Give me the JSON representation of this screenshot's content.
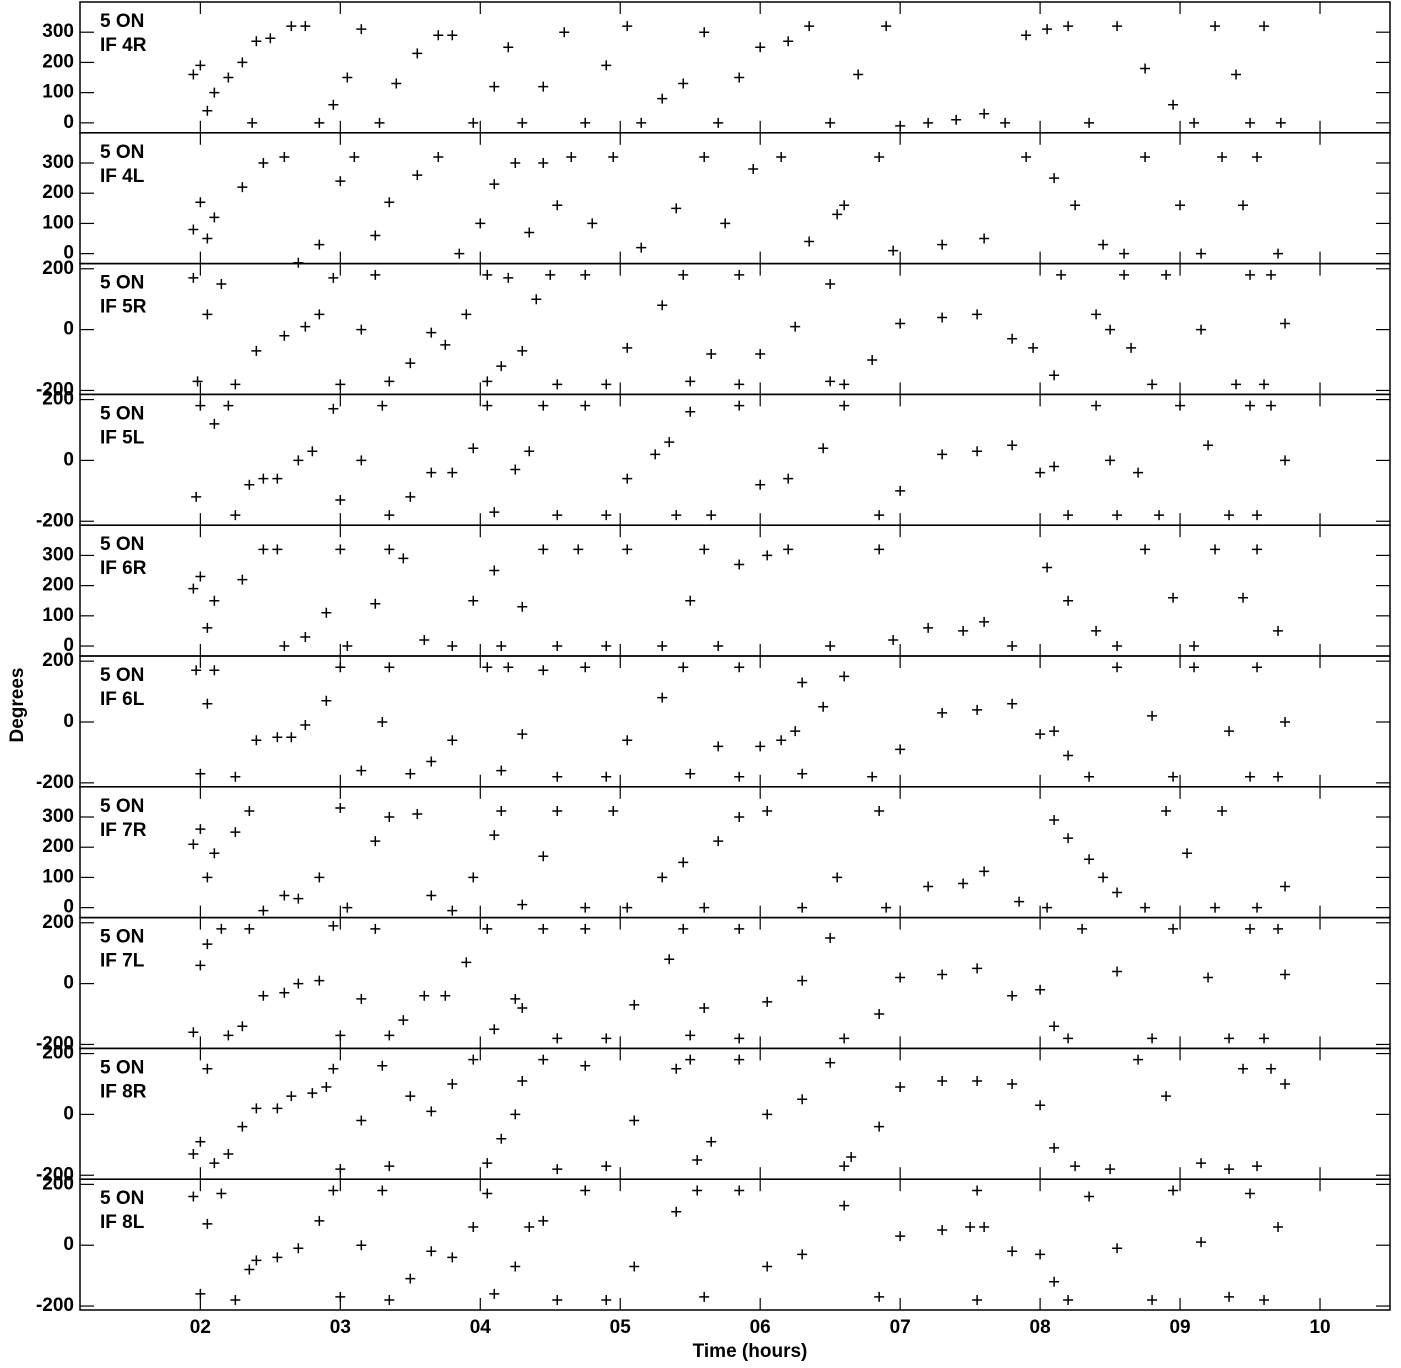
{
  "ylabel": "Degrees",
  "xlabel": "Time (hours)",
  "xlim": [
    1.14,
    10.5
  ],
  "xticks": [
    {
      "value": 2,
      "label": "02"
    },
    {
      "value": 3,
      "label": "03"
    },
    {
      "value": 4,
      "label": "04"
    },
    {
      "value": 5,
      "label": "05"
    },
    {
      "value": 6,
      "label": "06"
    },
    {
      "value": 7,
      "label": "07"
    },
    {
      "value": 8,
      "label": "08"
    },
    {
      "value": 9,
      "label": "09"
    },
    {
      "value": 10,
      "label": "10"
    }
  ],
  "chart_data": [
    {
      "type": "scatter",
      "source": "5 ON",
      "channel": "IF 4R",
      "ylim": [
        -33,
        400
      ],
      "yticks": [
        0,
        100,
        200,
        300
      ],
      "x": [
        1.95,
        2.0,
        2.05,
        2.1,
        2.2,
        2.3,
        2.37,
        2.4,
        2.5,
        2.65,
        2.75,
        2.85,
        2.95,
        3.05,
        3.15,
        3.28,
        3.4,
        3.55,
        3.7,
        3.8,
        3.95,
        4.1,
        4.2,
        4.3,
        4.45,
        4.6,
        4.75,
        4.9,
        5.05,
        5.15,
        5.3,
        5.45,
        5.6,
        5.7,
        5.85,
        6.0,
        6.2,
        6.35,
        6.5,
        6.7,
        6.9,
        7.0,
        7.2,
        7.4,
        7.6,
        7.75,
        7.9,
        8.05,
        8.2,
        8.35,
        8.55,
        8.75,
        8.95,
        9.1,
        9.25,
        9.4,
        9.5,
        9.6,
        9.72
      ],
      "values": [
        160,
        190,
        40,
        100,
        150,
        200,
        0,
        270,
        280,
        320,
        320,
        0,
        60,
        150,
        310,
        0,
        130,
        230,
        290,
        290,
        0,
        120,
        250,
        0,
        120,
        300,
        0,
        190,
        320,
        0,
        80,
        130,
        300,
        0,
        150,
        250,
        270,
        320,
        0,
        160,
        320,
        -10,
        0,
        10,
        30,
        0,
        290,
        310,
        320,
        0,
        320,
        180,
        60,
        0,
        320,
        160,
        0,
        320,
        0
      ]
    },
    {
      "type": "scatter",
      "source": "5 ON",
      "channel": "IF 4L",
      "ylim": [
        -33,
        400
      ],
      "yticks": [
        0,
        100,
        200,
        300
      ],
      "x": [
        1.95,
        2.0,
        2.05,
        2.1,
        2.3,
        2.45,
        2.6,
        2.7,
        2.85,
        3.0,
        3.1,
        3.25,
        3.35,
        3.55,
        3.7,
        3.85,
        4.0,
        4.1,
        4.25,
        4.35,
        4.45,
        4.55,
        4.65,
        4.8,
        4.95,
        5.15,
        5.4,
        5.6,
        5.75,
        5.95,
        6.15,
        6.35,
        6.55,
        6.6,
        6.85,
        6.95,
        7.3,
        7.6,
        7.9,
        8.1,
        8.25,
        8.45,
        8.6,
        8.75,
        9.0,
        9.15,
        9.3,
        9.45,
        9.55,
        9.7
      ],
      "values": [
        80,
        170,
        50,
        120,
        220,
        300,
        320,
        -30,
        30,
        240,
        320,
        60,
        170,
        260,
        320,
        0,
        100,
        230,
        300,
        70,
        300,
        160,
        320,
        100,
        320,
        20,
        150,
        320,
        100,
        280,
        320,
        40,
        130,
        160,
        320,
        10,
        30,
        50,
        320,
        250,
        160,
        30,
        0,
        320,
        160,
        0,
        320,
        160,
        320,
        0
      ]
    },
    {
      "type": "scatter",
      "source": "5 ON",
      "channel": "IF 5R",
      "ylim": [
        -213,
        217
      ],
      "yticks": [
        -200,
        0,
        200
      ],
      "x": [
        1.95,
        1.98,
        2.05,
        2.15,
        2.25,
        2.4,
        2.6,
        2.75,
        2.85,
        2.95,
        3.0,
        3.15,
        3.25,
        3.35,
        3.5,
        3.65,
        3.75,
        3.9,
        4.05,
        4.05,
        4.15,
        4.2,
        4.3,
        4.4,
        4.5,
        4.55,
        4.75,
        4.9,
        5.05,
        5.3,
        5.45,
        5.5,
        5.65,
        5.85,
        5.85,
        6.0,
        6.25,
        6.5,
        6.5,
        6.6,
        6.8,
        7.0,
        7.3,
        7.55,
        7.8,
        7.95,
        8.1,
        8.15,
        8.4,
        8.5,
        8.6,
        8.65,
        8.8,
        8.9,
        9.15,
        9.4,
        9.5,
        9.6,
        9.65,
        9.75
      ],
      "values": [
        170,
        -170,
        50,
        150,
        -180,
        -70,
        -20,
        10,
        50,
        170,
        -180,
        0,
        180,
        -170,
        -110,
        -10,
        -50,
        50,
        180,
        -170,
        -120,
        170,
        -70,
        100,
        180,
        -180,
        180,
        -180,
        -60,
        80,
        180,
        -170,
        -80,
        180,
        -180,
        -80,
        10,
        150,
        -170,
        -180,
        -100,
        20,
        40,
        50,
        -30,
        -60,
        -150,
        180,
        50,
        0,
        180,
        -60,
        -180,
        180,
        0,
        -180,
        180,
        -180,
        180,
        20
      ]
    },
    {
      "type": "scatter",
      "source": "5 ON",
      "channel": "IF 5L",
      "ylim": [
        -213,
        217
      ],
      "yticks": [
        -200,
        0,
        200
      ],
      "x": [
        1.97,
        2.0,
        2.1,
        2.2,
        2.25,
        2.35,
        2.45,
        2.55,
        2.7,
        2.8,
        2.95,
        3.0,
        3.15,
        3.3,
        3.35,
        3.5,
        3.65,
        3.8,
        3.95,
        4.05,
        4.1,
        4.25,
        4.35,
        4.45,
        4.55,
        4.75,
        4.9,
        5.05,
        5.25,
        5.35,
        5.4,
        5.5,
        5.65,
        5.85,
        6.0,
        6.2,
        6.45,
        6.6,
        6.85,
        7.0,
        7.3,
        7.55,
        7.8,
        8.0,
        8.1,
        8.2,
        8.4,
        8.5,
        8.55,
        8.7,
        8.85,
        9.0,
        9.2,
        9.35,
        9.5,
        9.55,
        9.65,
        9.75
      ],
      "values": [
        -120,
        180,
        120,
        180,
        -180,
        -80,
        -60,
        -60,
        0,
        30,
        170,
        -130,
        0,
        180,
        -180,
        -120,
        -40,
        -40,
        40,
        180,
        -170,
        -30,
        30,
        180,
        -180,
        180,
        -180,
        -60,
        20,
        60,
        -180,
        160,
        -180,
        180,
        -80,
        -60,
        40,
        180,
        -180,
        -100,
        20,
        30,
        50,
        -40,
        -20,
        -180,
        180,
        0,
        -180,
        -40,
        -180,
        180,
        50,
        -180,
        180,
        -180,
        180,
        0
      ]
    },
    {
      "type": "scatter",
      "source": "5 ON",
      "channel": "IF 6R",
      "ylim": [
        -33,
        400
      ],
      "yticks": [
        0,
        100,
        200,
        300
      ],
      "x": [
        1.95,
        2.0,
        2.05,
        2.1,
        2.3,
        2.45,
        2.55,
        2.6,
        2.75,
        2.9,
        3.0,
        3.05,
        3.25,
        3.35,
        3.45,
        3.6,
        3.8,
        3.95,
        4.1,
        4.15,
        4.3,
        4.45,
        4.55,
        4.7,
        4.9,
        5.05,
        5.3,
        5.5,
        5.6,
        5.7,
        5.85,
        6.05,
        6.2,
        6.5,
        6.85,
        6.95,
        7.2,
        7.45,
        7.6,
        7.8,
        8.05,
        8.2,
        8.4,
        8.55,
        8.75,
        8.95,
        9.1,
        9.25,
        9.45,
        9.55,
        9.7
      ],
      "values": [
        190,
        230,
        60,
        150,
        220,
        320,
        320,
        0,
        30,
        110,
        320,
        0,
        140,
        320,
        290,
        20,
        0,
        150,
        250,
        0,
        130,
        320,
        0,
        320,
        0,
        320,
        0,
        150,
        320,
        0,
        270,
        300,
        320,
        0,
        320,
        20,
        60,
        50,
        80,
        0,
        260,
        150,
        50,
        0,
        320,
        160,
        0,
        320,
        160,
        320,
        50
      ]
    },
    {
      "type": "scatter",
      "source": "5 ON",
      "channel": "IF 6L",
      "ylim": [
        -213,
        217
      ],
      "yticks": [
        -200,
        0,
        200
      ],
      "x": [
        1.97,
        2.0,
        2.05,
        2.1,
        2.25,
        2.4,
        2.55,
        2.65,
        2.75,
        2.9,
        3.0,
        3.15,
        3.3,
        3.35,
        3.5,
        3.65,
        3.8,
        4.05,
        4.15,
        4.2,
        4.3,
        4.45,
        4.55,
        4.75,
        4.9,
        5.05,
        5.3,
        5.45,
        5.5,
        5.7,
        5.85,
        5.85,
        6.0,
        6.15,
        6.25,
        6.3,
        6.3,
        6.45,
        6.6,
        6.8,
        7.0,
        7.3,
        7.55,
        7.8,
        8.0,
        8.1,
        8.2,
        8.35,
        8.55,
        8.8,
        8.95,
        9.1,
        9.35,
        9.5,
        9.55,
        9.7,
        9.75
      ],
      "values": [
        170,
        -170,
        60,
        170,
        -180,
        -60,
        -50,
        -50,
        -10,
        70,
        180,
        -160,
        0,
        180,
        -170,
        -130,
        -60,
        180,
        -160,
        180,
        -40,
        170,
        -180,
        180,
        -180,
        -60,
        80,
        180,
        -170,
        -80,
        180,
        -180,
        -80,
        -60,
        -30,
        -170,
        130,
        50,
        150,
        -180,
        -90,
        30,
        40,
        60,
        -40,
        -30,
        -110,
        -180,
        180,
        20,
        -180,
        180,
        -30,
        -180,
        180,
        -180,
        0
      ]
    },
    {
      "type": "scatter",
      "source": "5 ON",
      "channel": "IF 7R",
      "ylim": [
        -33,
        400
      ],
      "yticks": [
        0,
        100,
        200,
        300
      ],
      "x": [
        1.95,
        2.0,
        2.05,
        2.1,
        2.25,
        2.35,
        2.45,
        2.6,
        2.7,
        2.85,
        3.0,
        3.05,
        3.25,
        3.35,
        3.55,
        3.65,
        3.8,
        3.95,
        4.1,
        4.15,
        4.3,
        4.45,
        4.55,
        4.75,
        4.95,
        5.05,
        5.3,
        5.45,
        5.6,
        5.7,
        5.85,
        6.05,
        6.3,
        6.55,
        6.85,
        6.9,
        7.2,
        7.45,
        7.6,
        7.85,
        8.05,
        8.1,
        8.2,
        8.35,
        8.45,
        8.55,
        8.75,
        8.9,
        9.05,
        9.25,
        9.3,
        9.55,
        9.75
      ],
      "values": [
        210,
        260,
        100,
        180,
        250,
        320,
        -10,
        40,
        30,
        100,
        330,
        0,
        220,
        300,
        310,
        40,
        -10,
        100,
        240,
        320,
        10,
        170,
        320,
        0,
        320,
        0,
        100,
        150,
        0,
        220,
        300,
        320,
        0,
        100,
        320,
        0,
        70,
        80,
        120,
        20,
        0,
        290,
        230,
        160,
        100,
        50,
        0,
        320,
        180,
        0,
        320,
        0,
        70
      ]
    },
    {
      "type": "scatter",
      "source": "5 ON",
      "channel": "IF 7L",
      "ylim": [
        -213,
        217
      ],
      "yticks": [
        -200,
        0,
        200
      ],
      "x": [
        1.95,
        2.0,
        2.05,
        2.15,
        2.2,
        2.3,
        2.35,
        2.45,
        2.6,
        2.7,
        2.85,
        2.95,
        3.0,
        3.15,
        3.25,
        3.35,
        3.45,
        3.6,
        3.75,
        3.9,
        4.05,
        4.1,
        4.25,
        4.3,
        4.45,
        4.55,
        4.75,
        4.9,
        5.1,
        5.35,
        5.45,
        5.5,
        5.6,
        5.85,
        5.85,
        6.05,
        6.3,
        6.5,
        6.6,
        6.85,
        7.0,
        7.3,
        7.55,
        7.8,
        8.0,
        8.1,
        8.2,
        8.3,
        8.55,
        8.8,
        8.95,
        9.2,
        9.35,
        9.5,
        9.6,
        9.7,
        9.75
      ],
      "values": [
        -160,
        60,
        130,
        180,
        -170,
        -140,
        180,
        -40,
        -30,
        0,
        10,
        190,
        -170,
        -50,
        180,
        -170,
        -120,
        -40,
        -40,
        70,
        180,
        -150,
        -50,
        -80,
        180,
        -180,
        180,
        -180,
        -70,
        80,
        180,
        -170,
        -80,
        180,
        -180,
        -60,
        10,
        150,
        -180,
        -100,
        20,
        30,
        50,
        -40,
        -20,
        -140,
        -180,
        180,
        40,
        -180,
        180,
        20,
        -180,
        180,
        -180,
        180,
        30
      ]
    },
    {
      "type": "scatter",
      "source": "5 ON",
      "channel": "IF 8R",
      "ylim": [
        -213,
        217
      ],
      "yticks": [
        -200,
        0,
        200
      ],
      "x": [
        1.95,
        2.0,
        2.05,
        2.1,
        2.2,
        2.3,
        2.4,
        2.55,
        2.65,
        2.8,
        2.9,
        2.95,
        3.0,
        3.15,
        3.3,
        3.35,
        3.5,
        3.65,
        3.8,
        3.95,
        4.05,
        4.15,
        4.25,
        4.3,
        4.45,
        4.55,
        4.75,
        4.9,
        5.1,
        5.4,
        5.5,
        5.55,
        5.65,
        5.85,
        6.05,
        6.3,
        6.5,
        6.6,
        6.65,
        6.85,
        7.0,
        7.3,
        7.55,
        7.8,
        8.0,
        8.1,
        8.25,
        8.5,
        8.7,
        8.9,
        9.15,
        9.35,
        9.45,
        9.55,
        9.65,
        9.75
      ],
      "values": [
        -130,
        -90,
        150,
        -160,
        -130,
        -40,
        20,
        20,
        60,
        70,
        90,
        150,
        -180,
        -20,
        160,
        -170,
        60,
        10,
        100,
        180,
        -160,
        -80,
        0,
        110,
        180,
        -180,
        160,
        -170,
        -20,
        150,
        180,
        -150,
        -90,
        180,
        0,
        50,
        170,
        -170,
        -140,
        -40,
        90,
        110,
        110,
        100,
        30,
        -110,
        -170,
        -180,
        180,
        60,
        -160,
        -180,
        150,
        -170,
        150,
        100
      ]
    },
    {
      "type": "scatter",
      "source": "5 ON",
      "channel": "IF 8L",
      "ylim": [
        -213,
        217
      ],
      "yticks": [
        -200,
        0,
        200
      ],
      "x": [
        1.95,
        2.0,
        2.05,
        2.15,
        2.25,
        2.35,
        2.4,
        2.55,
        2.7,
        2.85,
        2.95,
        3.0,
        3.15,
        3.3,
        3.35,
        3.5,
        3.65,
        3.8,
        3.95,
        4.05,
        4.1,
        4.25,
        4.35,
        4.45,
        4.55,
        4.75,
        4.9,
        5.1,
        5.4,
        5.55,
        5.6,
        5.85,
        6.05,
        6.3,
        6.6,
        6.85,
        7.0,
        7.3,
        7.5,
        7.55,
        7.55,
        7.6,
        7.8,
        8.0,
        8.1,
        8.2,
        8.35,
        8.55,
        8.8,
        8.95,
        9.15,
        9.35,
        9.5,
        9.6,
        9.7
      ],
      "values": [
        160,
        -160,
        70,
        170,
        -180,
        -80,
        -50,
        -40,
        -10,
        80,
        180,
        -170,
        0,
        180,
        -180,
        -110,
        -20,
        -40,
        60,
        170,
        -160,
        -70,
        60,
        80,
        -180,
        180,
        -180,
        -70,
        110,
        180,
        -170,
        180,
        -70,
        -30,
        130,
        -170,
        30,
        50,
        60,
        -180,
        180,
        60,
        -20,
        -30,
        -120,
        -180,
        160,
        -10,
        -180,
        180,
        10,
        -170,
        170,
        -180,
        60
      ]
    }
  ]
}
